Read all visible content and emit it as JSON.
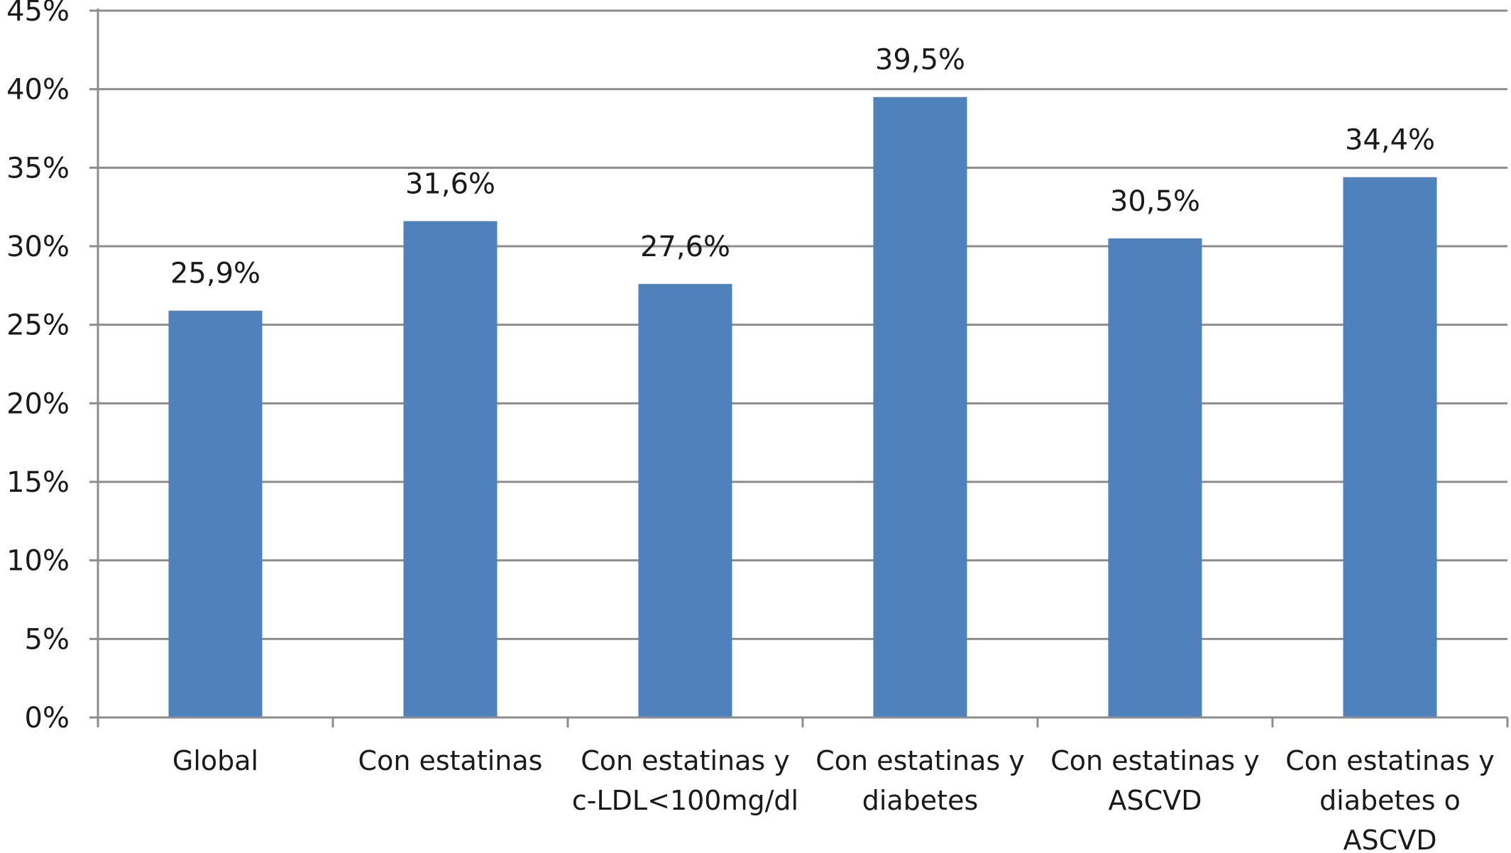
{
  "chart_data": {
    "type": "bar",
    "categories": [
      "Global",
      "Con estatinas",
      "Con estatinas y c-LDL<100mg/dl",
      "Con estatinas y diabetes",
      "Con estatinas y ASCVD",
      "Con estatinas y diabetes o ASCVD"
    ],
    "category_lines": [
      [
        "Global"
      ],
      [
        "Con estatinas"
      ],
      [
        "Con estatinas y",
        "c-LDL<100mg/dl"
      ],
      [
        "Con estatinas y",
        "diabetes"
      ],
      [
        "Con estatinas y",
        "ASCVD"
      ],
      [
        "Con estatinas y",
        "diabetes o",
        "ASCVD"
      ]
    ],
    "values": [
      25.9,
      31.6,
      27.6,
      39.5,
      30.5,
      34.4
    ],
    "data_labels": [
      "25,9%",
      "31,6%",
      "27,6%",
      "39,5%",
      "30,5%",
      "34,4%"
    ],
    "yticks": [
      0,
      5,
      10,
      15,
      20,
      25,
      30,
      35,
      40,
      45
    ],
    "ytick_labels": [
      "0%",
      "5%",
      "10%",
      "15%",
      "20%",
      "25%",
      "30%",
      "35%",
      "40%",
      "45%"
    ],
    "ylim": [
      0,
      45
    ],
    "grid": true,
    "legend": "none",
    "title": "",
    "xlabel": "",
    "ylabel": "",
    "colors": {
      "bar": "#4f81bd",
      "grid": "#8c8c8c",
      "axis": "#8c8c8c"
    }
  }
}
